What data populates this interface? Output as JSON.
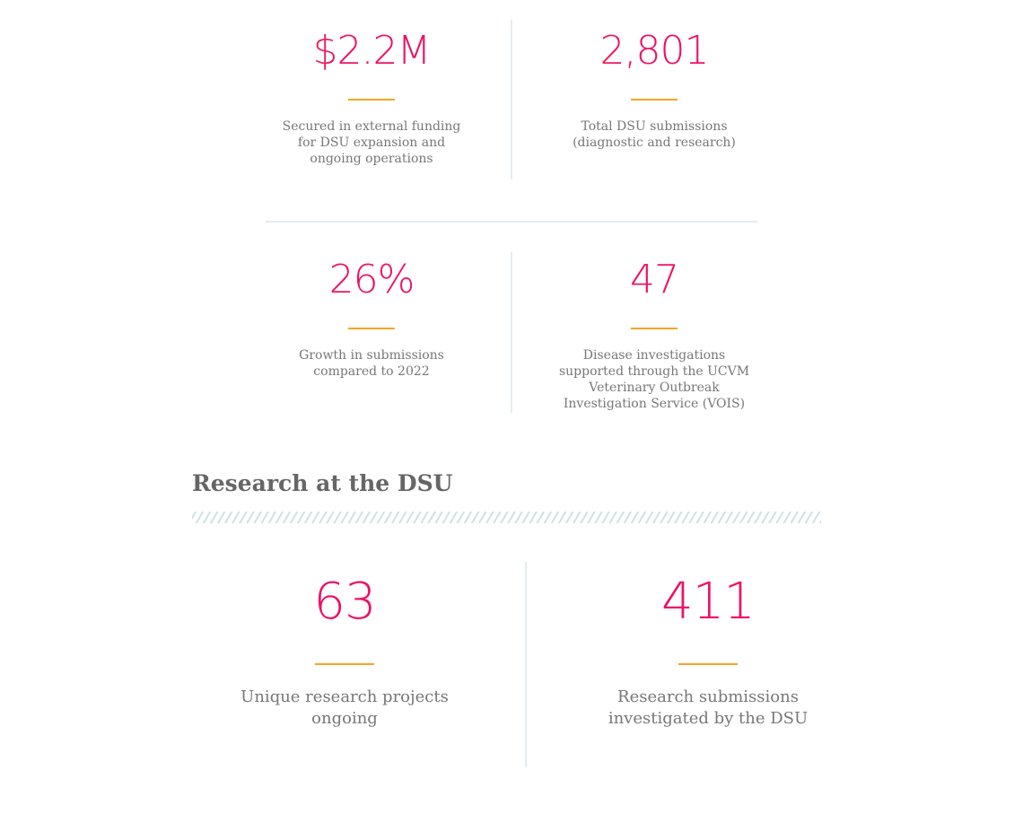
{
  "top_stats": [
    {
      "value": "$2.2M",
      "caption": [
        "Secured in external funding",
        "for DSU expansion and",
        "ongoing operations"
      ]
    },
    {
      "value": "2,801",
      "caption": [
        "Total DSU submissions",
        "(diagnostic and research)"
      ]
    },
    {
      "value": "26%",
      "caption": [
        "Growth in submissions",
        "compared to 2022"
      ]
    },
    {
      "value": "47",
      "caption": [
        "Disease investigations",
        "supported through the UCVM",
        "Veterinary Outbreak",
        "Investigation Service (VOIS)"
      ]
    }
  ],
  "research": {
    "heading": "Research at the DSU",
    "stats": [
      {
        "value": "63",
        "caption": [
          "Unique research projects",
          "ongoing"
        ]
      },
      {
        "value": "411",
        "caption": [
          "Research submissions",
          "investigated by the DSU"
        ]
      }
    ]
  },
  "colors": {
    "number": "#ec1268",
    "number_gradient_start": "#f26a2a",
    "rule": "#f5a623",
    "divider": "#e3ecee",
    "text": "#777777"
  }
}
